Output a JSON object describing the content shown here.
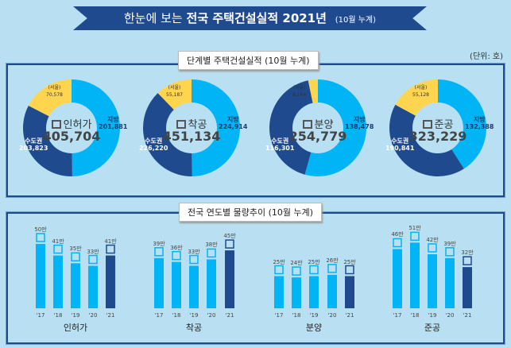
{
  "header": {
    "title_prefix": "한눈에 보는",
    "title_main": "전국 주택건설실적 2021년",
    "title_suffix": "(10월 누계)"
  },
  "unit": "(단위: 호)",
  "section1": {
    "title": "단계별 주택건설실적 (10월 누계)"
  },
  "section2": {
    "title": "전국 연도별 물량추이 (10월 누계)"
  },
  "colors": {
    "local": "#00b4f5",
    "metro": "#1f4a8e",
    "seoul": "#ffd54f",
    "bar_past": "#00b4f5",
    "bar_current": "#1f4a8e"
  },
  "stages": [
    {
      "name": "인허가",
      "icon": "permit-document-icon",
      "total": "405,704",
      "local_label": "지방",
      "local": "201,881",
      "metro_label": "수도권",
      "metro": "203,823",
      "seoul_label": "(서울)",
      "seoul": "70,578"
    },
    {
      "name": "착공",
      "icon": "crane-icon",
      "total": "451,134",
      "local_label": "지방",
      "local": "224,914",
      "metro_label": "수도권",
      "metro": "226,220",
      "seoul_label": "(서울)",
      "seoul": "55,187"
    },
    {
      "name": "분양",
      "icon": "presentation-icon",
      "total": "254,779",
      "local_label": "지방",
      "local": "138,478",
      "metro_label": "수도권",
      "metro": "116,301",
      "seoul_label": "(서울)",
      "seoul": "8,184"
    },
    {
      "name": "준공",
      "icon": "building-icon",
      "total": "323,229",
      "local_label": "지방",
      "local": "132,388",
      "metro_label": "수도권",
      "metro": "190,841",
      "seoul_label": "(서울)",
      "seoul": "55,128"
    }
  ],
  "chart_data": {
    "type": "bar",
    "categories": [
      "'17",
      "'18",
      "'19",
      "'20",
      "'21"
    ],
    "groups": [
      {
        "name": "인허가",
        "values": [
          50,
          41,
          35,
          33,
          41
        ],
        "labels": [
          "50만",
          "41만",
          "35만",
          "33만",
          "41만"
        ]
      },
      {
        "name": "착공",
        "values": [
          39,
          36,
          33,
          38,
          45
        ],
        "labels": [
          "39만",
          "36만",
          "33만",
          "38만",
          "45만"
        ]
      },
      {
        "name": "분양",
        "values": [
          25,
          24,
          25,
          26,
          25
        ],
        "labels": [
          "25만",
          "24만",
          "25만",
          "26만",
          "25만"
        ]
      },
      {
        "name": "준공",
        "values": [
          46,
          51,
          42,
          39,
          32
        ],
        "labels": [
          "46만",
          "51만",
          "42만",
          "39만",
          "32만"
        ]
      }
    ]
  }
}
